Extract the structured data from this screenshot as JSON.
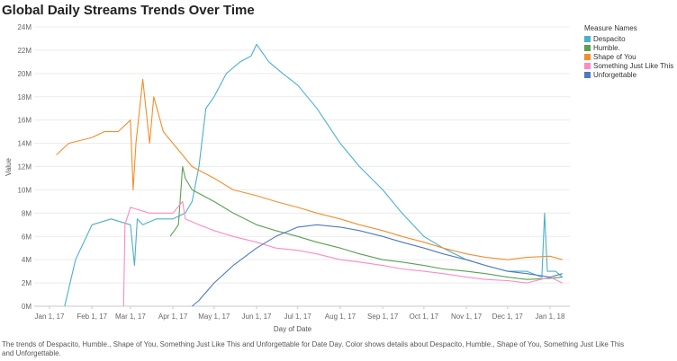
{
  "chart_data": {
    "type": "line",
    "title": "Global Daily Streams Trends Over Time",
    "xlabel": "Day of Date",
    "ylabel": "Value",
    "x_ticks": [
      "Jan 1, 17",
      "Feb 1, 17",
      "Mar 1, 17",
      "Apr 1, 17",
      "May 1, 17",
      "Jun 1, 17",
      "Jul 1, 17",
      "Aug 1, 17",
      "Sep 1, 17",
      "Oct 1, 17",
      "Nov 1, 17",
      "Dec 1, 17",
      "Jan 1, 18"
    ],
    "y_ticks": [
      "0M",
      "2M",
      "4M",
      "6M",
      "8M",
      "10M",
      "12M",
      "14M",
      "16M",
      "18M",
      "20M",
      "22M",
      "24M"
    ],
    "ylim": [
      0,
      24
    ],
    "y_unit": "M",
    "grid": "horizontal",
    "legend_title": "Measure Names",
    "legend_position": "top-right",
    "series": [
      {
        "name": "Despacito",
        "color": "#4bb0cf",
        "x": [
          "2017-01-12",
          "2017-01-20",
          "2017-02-01",
          "2017-02-15",
          "2017-03-01",
          "2017-03-04",
          "2017-03-06",
          "2017-03-10",
          "2017-03-20",
          "2017-04-01",
          "2017-04-10",
          "2017-04-15",
          "2017-04-20",
          "2017-04-25",
          "2017-05-01",
          "2017-05-10",
          "2017-05-20",
          "2017-05-28",
          "2017-06-01",
          "2017-06-10",
          "2017-06-20",
          "2017-07-01",
          "2017-07-15",
          "2017-08-01",
          "2017-08-15",
          "2017-09-01",
          "2017-09-15",
          "2017-10-01",
          "2017-10-15",
          "2017-11-01",
          "2017-11-15",
          "2017-12-01",
          "2017-12-15",
          "2017-12-26",
          "2017-12-28",
          "2017-12-30",
          "2018-01-05",
          "2018-01-10"
        ],
        "y": [
          0,
          4,
          7,
          7.5,
          7,
          3.5,
          7.5,
          7,
          7.5,
          7.5,
          8,
          9,
          12,
          17,
          18,
          20,
          21,
          21.5,
          22.5,
          21,
          20,
          19,
          17,
          14,
          12,
          10,
          8,
          6,
          5,
          4,
          3.5,
          3,
          3,
          2.5,
          8,
          3,
          3,
          2.5
        ]
      },
      {
        "name": "Humble.",
        "color": "#59a14f",
        "x": [
          "2017-03-30",
          "2017-04-05",
          "2017-04-08",
          "2017-04-10",
          "2017-04-15",
          "2017-05-01",
          "2017-05-15",
          "2017-06-01",
          "2017-06-15",
          "2017-07-01",
          "2017-07-15",
          "2017-08-01",
          "2017-08-15",
          "2017-09-01",
          "2017-09-15",
          "2017-10-01",
          "2017-10-15",
          "2017-11-01",
          "2017-11-15",
          "2017-12-01",
          "2017-12-15",
          "2018-01-01",
          "2018-01-10"
        ],
        "y": [
          6,
          7,
          12,
          11,
          10,
          9,
          8,
          7,
          6.5,
          6,
          5.5,
          5,
          4.5,
          4,
          3.8,
          3.5,
          3.2,
          3,
          2.8,
          2.5,
          2.3,
          2.4,
          2.5
        ]
      },
      {
        "name": "Shape of You",
        "color": "#f28e2b",
        "x": [
          "2017-01-06",
          "2017-01-15",
          "2017-02-01",
          "2017-02-10",
          "2017-02-20",
          "2017-03-01",
          "2017-03-03",
          "2017-03-05",
          "2017-03-10",
          "2017-03-15",
          "2017-03-18",
          "2017-03-25",
          "2017-04-01",
          "2017-04-15",
          "2017-05-01",
          "2017-05-15",
          "2017-06-01",
          "2017-06-15",
          "2017-07-01",
          "2017-07-15",
          "2017-08-01",
          "2017-08-15",
          "2017-09-01",
          "2017-09-15",
          "2017-10-01",
          "2017-10-15",
          "2017-11-01",
          "2017-11-15",
          "2017-12-01",
          "2017-12-15",
          "2018-01-01",
          "2018-01-10"
        ],
        "y": [
          13,
          14,
          14.5,
          15,
          15,
          16,
          10,
          14,
          19.5,
          14,
          18,
          15,
          14,
          12,
          11,
          10,
          9.5,
          9,
          8.5,
          8,
          7.5,
          7,
          6.5,
          6,
          5.5,
          5,
          4.5,
          4.2,
          4,
          4.2,
          4.3,
          4
        ]
      },
      {
        "name": "Something Just Like This",
        "color": "#ff8ac0",
        "x": [
          "2017-02-24",
          "2017-02-25",
          "2017-03-01",
          "2017-03-15",
          "2017-04-01",
          "2017-04-08",
          "2017-04-10",
          "2017-04-20",
          "2017-05-01",
          "2017-05-15",
          "2017-06-01",
          "2017-06-15",
          "2017-07-01",
          "2017-07-15",
          "2017-08-01",
          "2017-08-15",
          "2017-09-01",
          "2017-09-15",
          "2017-10-01",
          "2017-10-15",
          "2017-11-01",
          "2017-11-15",
          "2017-12-01",
          "2017-12-15",
          "2018-01-01",
          "2018-01-10"
        ],
        "y": [
          0,
          7,
          8.5,
          8,
          8,
          9,
          7.5,
          7,
          6.5,
          6,
          5.5,
          5,
          4.8,
          4.5,
          4,
          3.8,
          3.5,
          3.2,
          3,
          2.8,
          2.5,
          2.3,
          2.2,
          2,
          2.5,
          2
        ]
      },
      {
        "name": "Unforgettable",
        "color": "#4e79c0",
        "x": [
          "2017-04-15",
          "2017-04-20",
          "2017-05-01",
          "2017-05-15",
          "2017-06-01",
          "2017-06-15",
          "2017-07-01",
          "2017-07-15",
          "2017-08-01",
          "2017-08-15",
          "2017-09-01",
          "2017-09-15",
          "2017-10-01",
          "2017-10-15",
          "2017-11-01",
          "2017-11-15",
          "2017-12-01",
          "2017-12-15",
          "2018-01-01",
          "2018-01-10"
        ],
        "y": [
          0,
          0.5,
          2,
          3.5,
          5,
          6,
          6.8,
          7,
          6.8,
          6.5,
          6,
          5.5,
          5,
          4.5,
          4,
          3.5,
          3,
          2.8,
          2.5,
          2.8
        ]
      }
    ],
    "caption": "The trends of Despacito, Humble., Shape of You, Something Just Like This and Unforgettable for Date Day.  Color shows details about Despacito, Humble., Shape of You, Something Just Like This and Unforgettable."
  }
}
